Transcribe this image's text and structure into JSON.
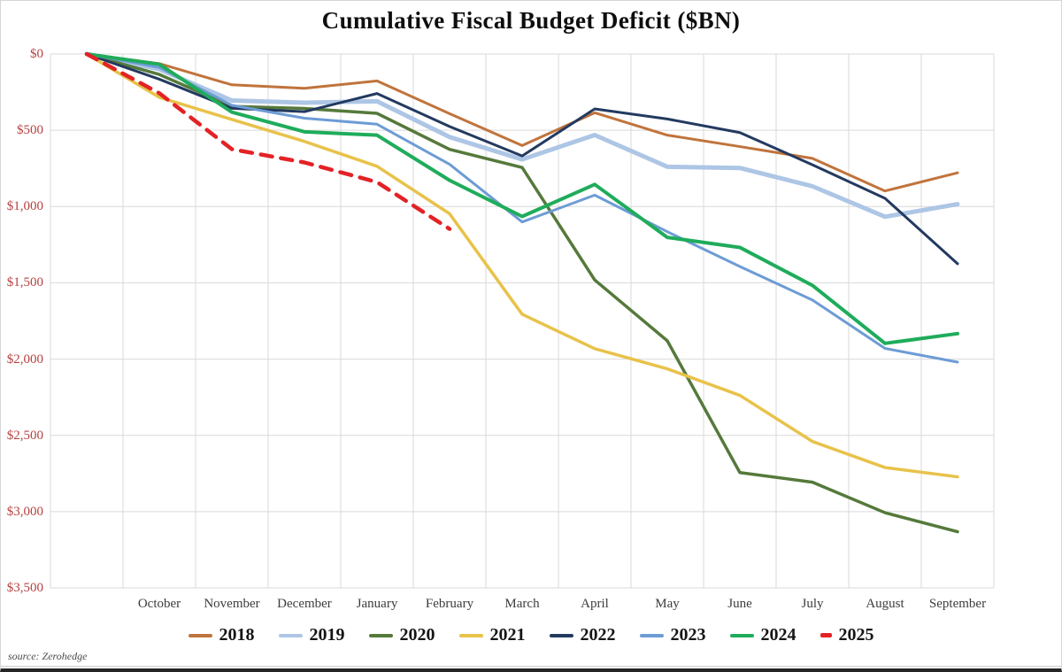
{
  "header": {
    "title": "Cumulative Fiscal Budget Deficit ($BN)"
  },
  "footer": {
    "source": "source: Zerohedge"
  },
  "chart_data": {
    "type": "line",
    "title": "Cumulative Fiscal Budget Deficit ($BN)",
    "xlabel": "",
    "ylabel": "",
    "grid": true,
    "legend_position": "bottom",
    "x_categories": [
      "",
      "October",
      "November",
      "December",
      "January",
      "February",
      "March",
      "April",
      "May",
      "June",
      "July",
      "August",
      "September"
    ],
    "x_note": "Each fiscal-year series starts at $0 one slot before October; values are cumulative deficits in $BN plotted increasing downward.",
    "y_axis": {
      "min": 0,
      "max": 3500,
      "inverted": true,
      "tick_values": [
        0,
        500,
        1000,
        1500,
        2000,
        2500,
        3000,
        3500
      ],
      "tick_labels": [
        "$0",
        "$500",
        "$1,000",
        "$1,500",
        "$2,000",
        "$2,500",
        "$3,000",
        "$3,500"
      ]
    },
    "series": [
      {
        "name": "2018",
        "color": "#C0743C",
        "width": 3,
        "dashed": false,
        "values": [
          0,
          63,
          202,
          225,
          176,
          391,
          600,
          385,
          532,
          607,
          684,
          898,
          779
        ]
      },
      {
        "name": "2019",
        "color": "#ADC6E5",
        "width": 5,
        "dashed": false,
        "values": [
          0,
          100,
          305,
          319,
          310,
          544,
          691,
          531,
          739,
          747,
          867,
          1067,
          984
        ]
      },
      {
        "name": "2020",
        "color": "#55793B",
        "width": 3.5,
        "dashed": false,
        "values": [
          0,
          134,
          343,
          357,
          389,
          625,
          744,
          1481,
          1880,
          2744,
          2807,
          3007,
          3132
        ]
      },
      {
        "name": "2021",
        "color": "#E8C24A",
        "width": 3.5,
        "dashed": false,
        "values": [
          0,
          284,
          429,
          573,
          736,
          1047,
          1706,
          1932,
          2064,
          2238,
          2540,
          2711,
          2772
        ]
      },
      {
        "name": "2022",
        "color": "#233A60",
        "width": 3,
        "dashed": false,
        "values": [
          0,
          165,
          356,
          378,
          259,
          475,
          668,
          360,
          426,
          515,
          726,
          946,
          1375
        ]
      },
      {
        "name": "2023",
        "color": "#6D9CD5",
        "width": 3,
        "dashed": false,
        "values": [
          0,
          88,
          336,
          421,
          460,
          723,
          1101,
          925,
          1165,
          1393,
          1613,
          1930,
          2020
        ]
      },
      {
        "name": "2024",
        "color": "#1FAC5B",
        "width": 4,
        "dashed": false,
        "values": [
          0,
          67,
          381,
          510,
          532,
          828,
          1065,
          855,
          1202,
          1268,
          1517,
          1897,
          1833
        ]
      },
      {
        "name": "2025",
        "color": "#E32226",
        "width": 4.5,
        "dashed": true,
        "values": [
          0,
          257,
          624,
          711,
          840,
          1147
        ]
      }
    ]
  },
  "style": {
    "gridline_color": "#d9d9d9",
    "ytick_color": "#b74040",
    "month_label_color": "#3c3c3c",
    "title_color": "#0e0e0e",
    "dash_pattern": "13 10"
  }
}
